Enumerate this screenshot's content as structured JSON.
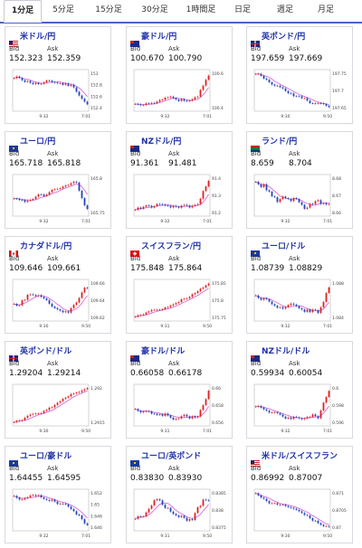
{
  "tabs": [
    "1分足",
    "5分足",
    "15分足",
    "30分足",
    "1時間足",
    "日足",
    "週足",
    "月足"
  ],
  "active_tab": 0,
  "bid_label": "Bid",
  "ask_label": "Ask",
  "cards": [
    {
      "pair": "米ドル/円",
      "flag": "us",
      "bid": "152.323",
      "ask": "152.359",
      "yticks": [
        "153",
        "152.8",
        "152.6",
        "152.4"
      ],
      "xticks": [
        "9:32",
        "7:01"
      ],
      "trend": "down_flat",
      "accent": "#2050c0"
    },
    {
      "pair": "豪ドル/円",
      "flag": "au",
      "bid": "100.670",
      "ask": "100.790",
      "yticks": [
        "100.6",
        "100.4"
      ],
      "xticks": [
        "9:32",
        "7:01"
      ],
      "trend": "flat_up",
      "accent": "#2050c0"
    },
    {
      "pair": "英ポンド/円",
      "flag": "gb",
      "bid": "197.659",
      "ask": "197.669",
      "yticks": [
        "197.75",
        "197.7",
        "197.65"
      ],
      "xticks": [
        "9:30",
        "9:50"
      ],
      "trend": "down",
      "accent": "#2050c0"
    },
    {
      "pair": "ユーロ/円",
      "flag": "eu",
      "bid": "165.718",
      "ask": "165.818",
      "yticks": [
        "165.8",
        "165.75"
      ],
      "xticks": [
        "9:32",
        "7:01"
      ],
      "trend": "flat_down",
      "accent": "#2050c0"
    },
    {
      "pair": "NZドル/円",
      "flag": "nz",
      "bid": "91.361",
      "ask": "91.481",
      "yticks": [
        "91.4",
        "91.3",
        "91.2"
      ],
      "xticks": [
        "9:32",
        "7:01"
      ],
      "trend": "flat_up",
      "accent": "#2050c0"
    },
    {
      "pair": "ランド/円",
      "flag": "za",
      "bid": "8.659",
      "ask": "8.704",
      "yticks": [
        "8.68",
        "8.67",
        "8.66"
      ],
      "xticks": [
        "9:32",
        "7:01"
      ],
      "trend": "volatile",
      "accent": "#2050c0"
    },
    {
      "pair": "カナダドル/円",
      "flag": "ca",
      "bid": "109.646",
      "ask": "109.661",
      "yticks": [
        "109.66",
        "109.64",
        "109.62"
      ],
      "xticks": [
        "9:30",
        "9:50"
      ],
      "trend": "wave",
      "accent": "#2050c0"
    },
    {
      "pair": "スイスフラン/円",
      "flag": "ch",
      "bid": "175.848",
      "ask": "175.864",
      "yticks": [
        "175.85",
        "175.8",
        "175.75"
      ],
      "xticks": [
        "9:31",
        "9:50"
      ],
      "trend": "up",
      "accent": "#2050c0"
    },
    {
      "pair": "ユーロ/ドル",
      "flag": "eu",
      "bid": "1.08739",
      "ask": "1.08829",
      "yticks": [
        "1.088",
        "1.084"
      ],
      "xticks": [
        "9:32",
        "7:01"
      ],
      "trend": "flat_up",
      "accent": "#2050c0"
    },
    {
      "pair": "英ポンド/ドル",
      "flag": "gb",
      "bid": "1.29204",
      "ask": "1.29214",
      "yticks": [
        "1.292",
        "1.2915"
      ],
      "xticks": [
        "9:30",
        "9:50"
      ],
      "trend": "up",
      "accent": "#2050c0"
    },
    {
      "pair": "豪ドル/ドル",
      "flag": "au",
      "bid": "0.66058",
      "ask": "0.66178",
      "yticks": [
        "0.66",
        "0.658",
        "0.656"
      ],
      "xticks": [
        "9:31",
        "7:01"
      ],
      "trend": "flat_up",
      "accent": "#2050c0"
    },
    {
      "pair": "NZドル/ドル",
      "flag": "nz",
      "bid": "0.59934",
      "ask": "0.60054",
      "yticks": [
        "0.6",
        "0.598",
        "0.596"
      ],
      "xticks": [
        "9:32",
        "7:01"
      ],
      "trend": "flat_up",
      "accent": "#2050c0"
    },
    {
      "pair": "ユーロ/豪ドル",
      "flag": "eu",
      "bid": "1.64455",
      "ask": "1.64595",
      "yticks": [
        "1.652",
        "1.65",
        "1.648",
        "1.646"
      ],
      "xticks": [
        "9:32",
        "7:01"
      ],
      "trend": "down_flat",
      "accent": "#2050c0"
    },
    {
      "pair": "ユーロ/英ポンド",
      "flag": "eu",
      "bid": "0.83830",
      "ask": "0.83930",
      "yticks": [
        "0.8385",
        "0.838",
        "0.8375"
      ],
      "xticks": [
        "9:31",
        "9:50"
      ],
      "trend": "wave",
      "accent": "#2050c0"
    },
    {
      "pair": "米ドル/スイスフラン",
      "flag": "us",
      "bid": "0.86992",
      "ask": "0.87007",
      "yticks": [
        "0.871",
        "0.8705",
        "0.87"
      ],
      "xticks": [
        "9:30",
        "9:50"
      ],
      "trend": "down",
      "accent": "#2050c0"
    }
  ]
}
